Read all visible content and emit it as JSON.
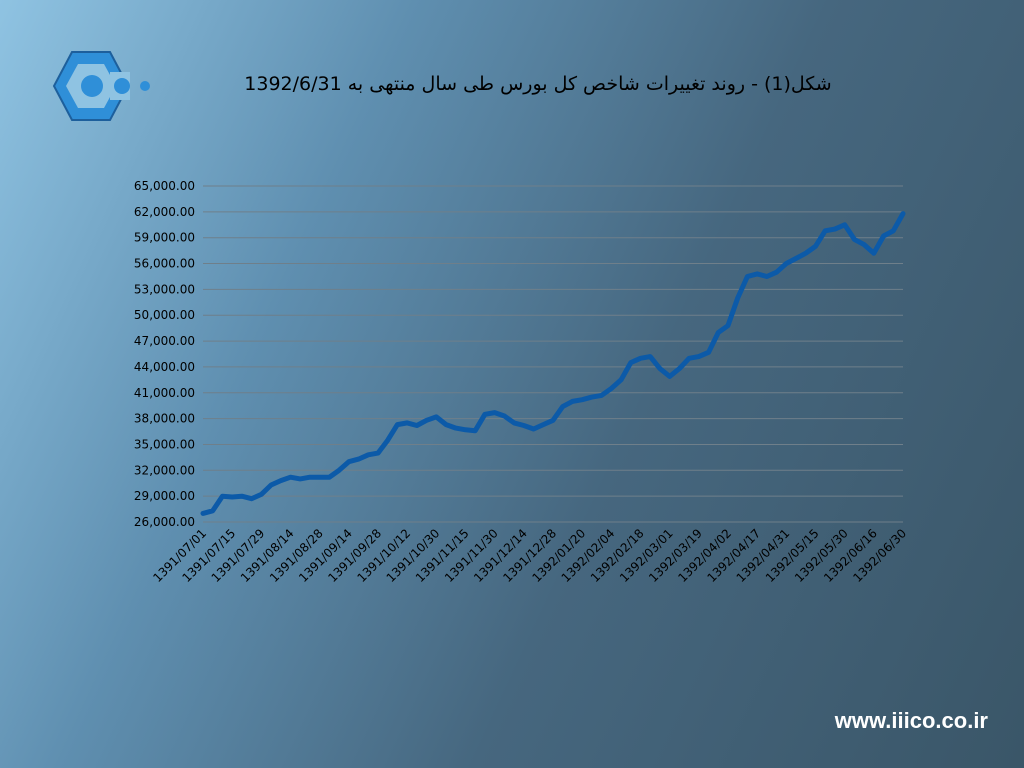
{
  "footer": "www.iiico.co.ir",
  "chart_data": {
    "type": "line",
    "title": "شکل(1) - روند تغییرات شاخص کل بورس طی سال منتهی به 1392/6/31",
    "categories": [
      "1391/07/01",
      null,
      null,
      "1391/07/15",
      null,
      null,
      "1391/07/29",
      null,
      null,
      "1391/08/14",
      null,
      null,
      "1391/08/28",
      null,
      null,
      "1391/09/14",
      null,
      null,
      "1391/09/28",
      null,
      null,
      "1391/10/12",
      null,
      null,
      "1391/10/30",
      null,
      null,
      "1391/11/15",
      null,
      null,
      "1391/11/30",
      null,
      null,
      "1391/12/14",
      null,
      null,
      "1391/12/28",
      null,
      null,
      "1392/01/20",
      null,
      null,
      "1392/02/04",
      null,
      null,
      "1392/02/18",
      null,
      null,
      "1392/03/01",
      null,
      null,
      "1392/03/19",
      null,
      null,
      "1392/04/02",
      null,
      null,
      "1392/04/17",
      null,
      null,
      "1392/04/31",
      null,
      null,
      "1392/05/15",
      null,
      null,
      "1392/05/30",
      null,
      null,
      "1392/06/16",
      null,
      null,
      "1392/06/30"
    ],
    "series": [
      {
        "color": "#0c5aa8",
        "values": [
          27000,
          27300,
          29000,
          28900,
          29000,
          28700,
          29200,
          30300,
          30800,
          31200,
          31000,
          31200,
          31200,
          31200,
          32000,
          33000,
          33300,
          33800,
          34000,
          35500,
          37300,
          37500,
          37200,
          37800,
          38200,
          37300,
          36900,
          36700,
          36600,
          38500,
          38700,
          38300,
          37500,
          37200,
          36800,
          37300,
          37800,
          39400,
          40000,
          40200,
          40500,
          40700,
          41500,
          42500,
          44500,
          45000,
          45200,
          43800,
          42900,
          43800,
          45000,
          45200,
          45700,
          48000,
          48800,
          52000,
          54500,
          54800,
          54500,
          55000,
          56000,
          56600,
          57200,
          58000,
          59800,
          60000,
          60500,
          58800,
          58200,
          57200,
          59200,
          59800,
          61800
        ]
      }
    ],
    "ylim": [
      26000,
      65000
    ],
    "yticks": [
      {
        "value": 26000,
        "label": "26,000.00"
      },
      {
        "value": 29000,
        "label": "29,000.00"
      },
      {
        "value": 32000,
        "label": "32,000.00"
      },
      {
        "value": 35000,
        "label": "35,000.00"
      },
      {
        "value": 38000,
        "label": "38,000.00"
      },
      {
        "value": 41000,
        "label": "41,000.00"
      },
      {
        "value": 44000,
        "label": "44,000.00"
      },
      {
        "value": 47000,
        "label": "47,000.00"
      },
      {
        "value": 50000,
        "label": "50,000.00"
      },
      {
        "value": 53000,
        "label": "53,000.00"
      },
      {
        "value": 56000,
        "label": "56,000.00"
      },
      {
        "value": 59000,
        "label": "59,000.00"
      },
      {
        "value": 62000,
        "label": "62,000.00"
      },
      {
        "value": 65000,
        "label": "65,000.00"
      }
    ],
    "grid": true
  }
}
